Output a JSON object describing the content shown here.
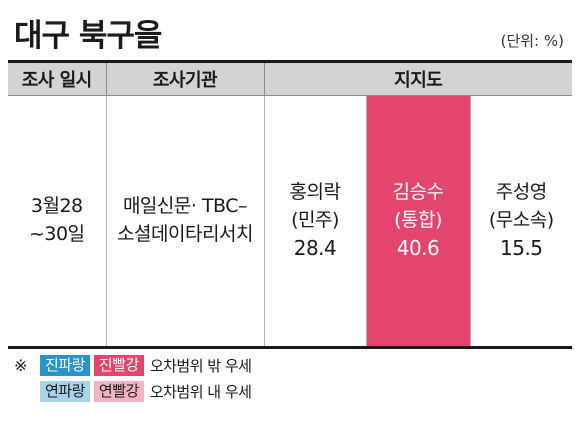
{
  "title": "대구 북구을",
  "unit": "(단위: %)",
  "headers": {
    "date": "조사 일시",
    "org": "조사기관",
    "support": "지지도"
  },
  "survey": {
    "date_line1": "3월28",
    "date_line2": "~30일",
    "org_line1": "매일신문· TBC–",
    "org_line2": "소셜데이타리서치"
  },
  "chart_data": {
    "type": "table",
    "title": "대구 북구을",
    "unit": "(단위: %)",
    "categories": [
      "홍의락",
      "김승수",
      "주성영"
    ],
    "parties": [
      "(민주)",
      "(통합)",
      "(무소속)"
    ],
    "values": [
      28.4,
      40.6,
      15.5
    ],
    "highlight": "김승수",
    "highlight_color": "#e2466f"
  },
  "legend": {
    "mark": "※",
    "row1": {
      "chip_blue": "진파랑",
      "chip_red": "진빨강",
      "text": "오차범위 밖 우세"
    },
    "row2": {
      "chip_blue": "연파랑",
      "chip_red": "연빨강",
      "text": "오차범위 내 우세"
    },
    "colors": {
      "dark_blue": "#2a93c9",
      "dark_red": "#e2466f",
      "light_blue": "#a9d3ea",
      "light_red": "#f3b3c4"
    }
  }
}
